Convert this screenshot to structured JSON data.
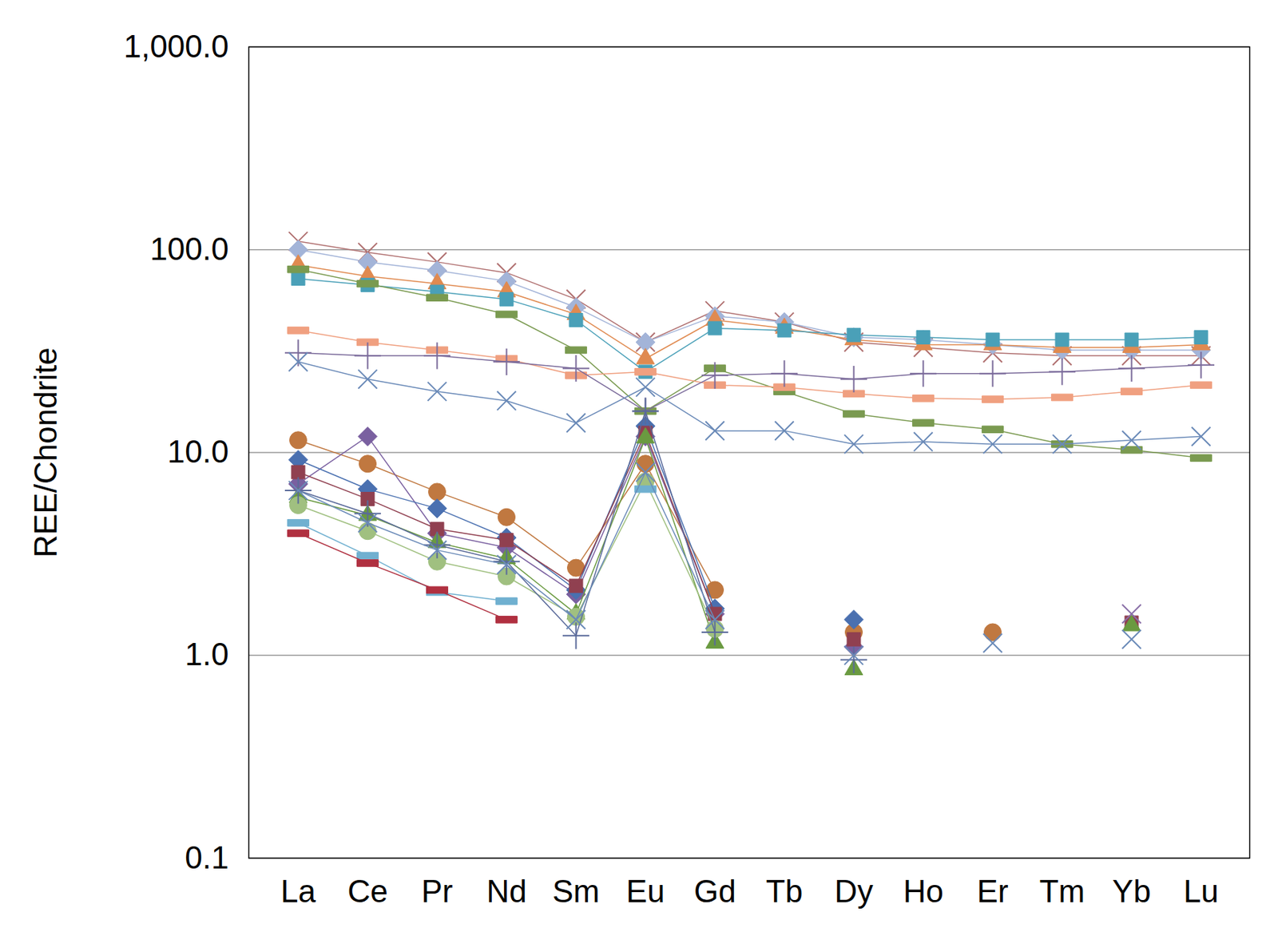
{
  "chart_data": {
    "type": "line",
    "y_label": "REE/Chondrite",
    "categories": [
      "La",
      "Ce",
      "Pr",
      "Nd",
      "Sm",
      "Eu",
      "Gd",
      "Tb",
      "Dy",
      "Ho",
      "Er",
      "Tm",
      "Yb",
      "Lu"
    ],
    "log": "y",
    "grid": true,
    "ylim": [
      0.1,
      1000
    ],
    "yticks": [
      0.1,
      {
        "value": 1,
        "label": "1.0"
      },
      {
        "value": 10,
        "label": "10.0"
      },
      {
        "value": 100,
        "label": "100.0"
      },
      {
        "value": 1000,
        "label": "1,000.0"
      }
    ],
    "series": [
      {
        "color": "#b07070",
        "marker": "x",
        "values": [
          110,
          97,
          87,
          77,
          57,
          35,
          50,
          44,
          35,
          33,
          31,
          30,
          30,
          30
        ]
      },
      {
        "color": "#a3b4d8",
        "marker": "diamond",
        "values": [
          100,
          87,
          79,
          70,
          52,
          35,
          47,
          44,
          37,
          36,
          34,
          32,
          32,
          32
        ]
      },
      {
        "color": "#e08a50",
        "marker": "triangle",
        "values": [
          84,
          74,
          68,
          62,
          48,
          29,
          45,
          41,
          36,
          34,
          34,
          33,
          33,
          34
        ]
      },
      {
        "color": "#4aa0b8",
        "marker": "square",
        "values": [
          72,
          67,
          62,
          57,
          45,
          25,
          41,
          40,
          38,
          37,
          36,
          36,
          36,
          37
        ]
      },
      {
        "color": "#7a9a50",
        "marker": "dash",
        "values": [
          80,
          68,
          58,
          48,
          32,
          16,
          26,
          20,
          15.5,
          14,
          13,
          11,
          10.3,
          9.4
        ]
      },
      {
        "color": "#f0a080",
        "marker": "dash",
        "values": [
          40,
          35,
          32,
          29,
          24,
          25,
          21.5,
          21,
          19.5,
          18.5,
          18.3,
          18.7,
          20,
          21.5
        ]
      },
      {
        "color": "#7a6a9a",
        "marker": "plus",
        "values": [
          31,
          30,
          30,
          28,
          26,
          16,
          24,
          24.5,
          23,
          24.5,
          24.5,
          25,
          26,
          27
        ]
      },
      {
        "color": "#6a8ab8",
        "marker": "x",
        "values": [
          28,
          23,
          20,
          18,
          14,
          21,
          12.8,
          12.8,
          11,
          11.3,
          11,
          11,
          11.5,
          12
        ]
      },
      {
        "color": "#c07840",
        "marker": "circle",
        "values": [
          11.5,
          8.8,
          6.4,
          4.8,
          2.7,
          8.8,
          2.1,
          null,
          1.3,
          null,
          1.3,
          null,
          null,
          null
        ]
      },
      {
        "color": "#7a60a0",
        "marker": "diamond",
        "values": [
          7,
          12,
          4,
          3.4,
          2,
          12,
          1.6,
          null,
          1.1,
          null,
          null,
          null,
          null,
          null
        ]
      },
      {
        "color": "#4a70b0",
        "marker": "diamond",
        "values": [
          9.2,
          6.6,
          5.3,
          3.8,
          2.1,
          13.5,
          1.7,
          null,
          1.5,
          null,
          null,
          null,
          null,
          null
        ]
      },
      {
        "color": "#904050",
        "marker": "square",
        "values": [
          8,
          5.9,
          4.2,
          3.7,
          2.2,
          12.5,
          1.6,
          null,
          1.2,
          null,
          null,
          null,
          1.45,
          null
        ]
      },
      {
        "color": "#6a9a40",
        "marker": "triangle",
        "values": [
          6,
          4.9,
          3.6,
          3.0,
          1.6,
          11.8,
          1.15,
          null,
          0.85,
          null,
          null,
          null,
          1.4,
          null
        ]
      },
      {
        "color": "#a0c080",
        "marker": "circle",
        "values": [
          5.5,
          4.1,
          2.9,
          2.45,
          1.55,
          7.2,
          1.35,
          null,
          null,
          null,
          null,
          null,
          null,
          null
        ]
      },
      {
        "color": "#70b0d0",
        "marker": "dash",
        "values": [
          4.5,
          3.1,
          2.05,
          1.85,
          null,
          6.6,
          null,
          null,
          null,
          null,
          null,
          null,
          null,
          null
        ]
      },
      {
        "color": "#b03040",
        "marker": "dash",
        "values": [
          4,
          2.85,
          2.1,
          1.5,
          null,
          null,
          null,
          null,
          null,
          null,
          null,
          null,
          null,
          null
        ]
      },
      {
        "color": "#5a6a9a",
        "marker": "plus",
        "values": [
          6.5,
          5,
          3.5,
          2.9,
          1.25,
          16,
          1.3,
          null,
          0.95,
          null,
          null,
          null,
          null,
          null
        ]
      },
      {
        "color": "#6a8ab8",
        "marker": "x",
        "values": [
          6.5,
          4.5,
          3.3,
          2.8,
          1.5,
          8,
          1.5,
          null,
          1.0,
          null,
          1.15,
          null,
          1.2,
          null
        ]
      },
      {
        "color": "#8a70a8",
        "marker": "x",
        "values": [
          null,
          null,
          null,
          null,
          null,
          null,
          null,
          null,
          null,
          null,
          null,
          null,
          1.6,
          null
        ]
      }
    ]
  }
}
